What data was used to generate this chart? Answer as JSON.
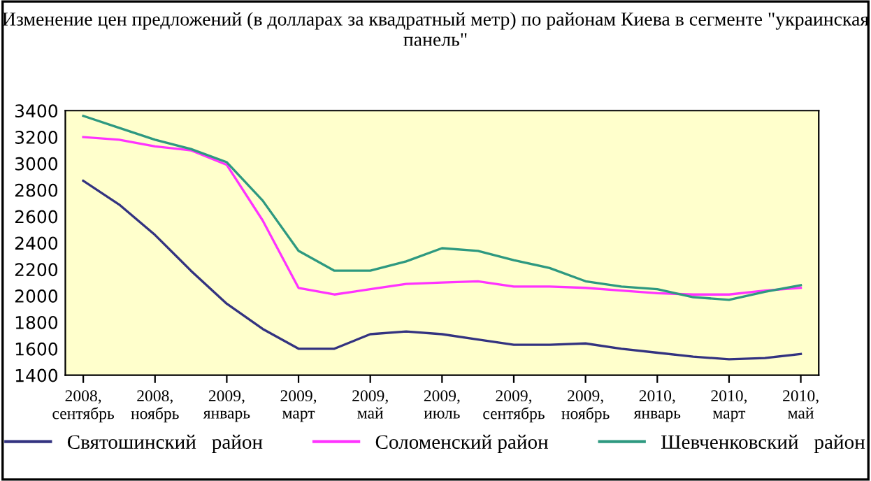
{
  "chart_data": {
    "type": "line",
    "title": "Изменение цен предложений (в долларах за квадратный метр) по районам Киева в сегменте \"украинская панель\"",
    "categories": [
      "2008,\nсентябрь",
      null,
      "2008,\nноябрь",
      null,
      "2009,\nянварь",
      null,
      "2009,\nмарт",
      null,
      "2009,\nмай",
      null,
      "2009,\nиюль",
      null,
      "2009,\nсентябрь",
      null,
      "2009,\nноябрь",
      null,
      "2010,\nянварь",
      null,
      "2010,\nмарт",
      null,
      "2010,\nмай"
    ],
    "series": [
      {
        "name": "Святошинский   район",
        "color": "#333380",
        "values": [
          2870,
          2690,
          2460,
          2190,
          1940,
          1750,
          1600,
          1600,
          1710,
          1730,
          1710,
          1670,
          1630,
          1630,
          1640,
          1600,
          1570,
          1540,
          1520,
          1530,
          1560
        ]
      },
      {
        "name": "Соломенский район",
        "color": "#ff33ff",
        "values": [
          3200,
          3180,
          3130,
          3100,
          2990,
          2570,
          2060,
          2010,
          2050,
          2090,
          2100,
          2110,
          2070,
          2070,
          2060,
          2040,
          2020,
          2010,
          2010,
          2040,
          2060
        ]
      },
      {
        "name": "Шевченковский   район",
        "color": "#2e9980",
        "values": [
          3360,
          3270,
          3180,
          3110,
          3010,
          2720,
          2340,
          2190,
          2190,
          2260,
          2360,
          2340,
          2270,
          2210,
          2110,
          2070,
          2050,
          1990,
          1970,
          2030,
          2080
        ]
      }
    ],
    "ylim": [
      1400,
      3400
    ],
    "yticks": [
      1400,
      1600,
      1800,
      2000,
      2200,
      2400,
      2600,
      2800,
      3000,
      3200,
      3400
    ],
    "grid": false,
    "legend": "bottom",
    "marker": "none",
    "line_style": "solid"
  }
}
